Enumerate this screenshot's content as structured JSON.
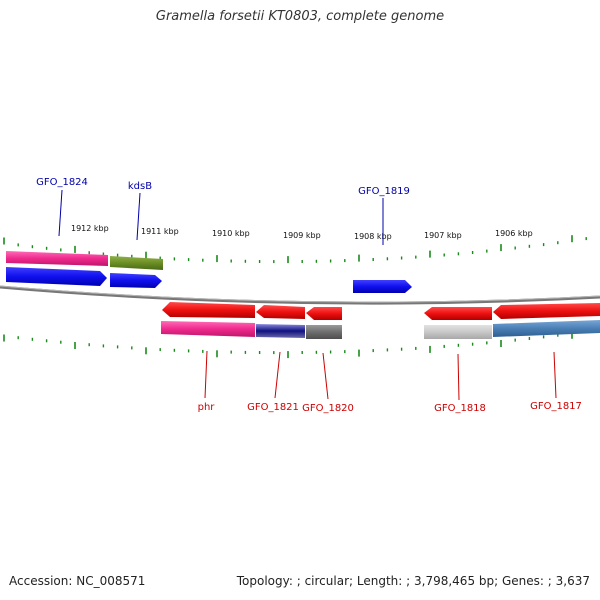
{
  "title": "Gramella forsetii KT0803, complete genome",
  "footer": {
    "accession_label": "Accession:",
    "accession": "NC_008571",
    "topology_label": "Topology:",
    "topology": "circular",
    "length_label": "Length:",
    "length": "3,798,465 bp",
    "genes_label": "Genes:",
    "genes": "3,637"
  },
  "scale_labels": [
    "1912 kbp",
    "1911 kbp",
    "1910 kbp",
    "1909 kbp",
    "1908 kbp",
    "1907 kbp",
    "1906 kbp"
  ],
  "gene_labels_top": [
    "GFO_1824",
    "kdsB",
    "GFO_1819"
  ],
  "gene_labels_bottom": [
    "phr",
    "GFO_1821",
    "GFO_1820",
    "GFO_1818",
    "GFO_1817"
  ],
  "colors": {
    "forward_gene": "#1010ee",
    "reverse_gene": "#ee1010",
    "forward_label": "#0000aa",
    "reverse_label": "#cc0000",
    "backbone": "#8a8a8a",
    "tick": "#1a8a1a",
    "magenta": "#ee2a8c",
    "olive": "#6b8e23",
    "navy": "#101080",
    "gray": "#777777",
    "light_gray": "#c8c8c8",
    "steel": "#4a7fb5"
  }
}
